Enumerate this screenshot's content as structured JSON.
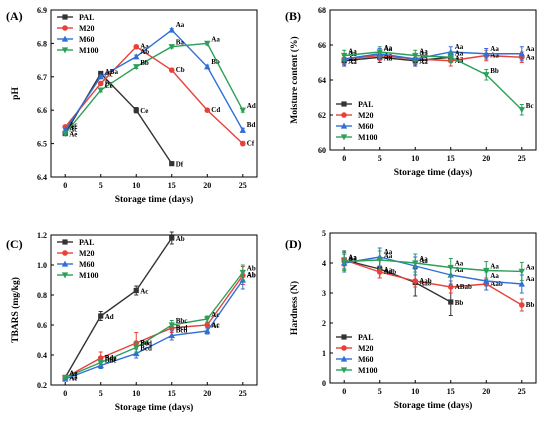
{
  "figure": {
    "series_styles": [
      {
        "name": "PAL",
        "color": "#333333",
        "marker": "square"
      },
      {
        "name": "M20",
        "color": "#e8413a",
        "marker": "circle"
      },
      {
        "name": "M60",
        "color": "#2f6fd6",
        "marker": "triangle-up"
      },
      {
        "name": "M100",
        "color": "#2ca05a",
        "marker": "triangle-down"
      }
    ]
  },
  "chart_data": [
    {
      "panel": "(A)",
      "type": "line",
      "xlabel": "Storage time (days)",
      "ylabel": "pH",
      "xlim": [
        -2,
        27
      ],
      "ylim": [
        6.4,
        6.9
      ],
      "xticks": [
        0,
        5,
        10,
        15,
        20,
        25
      ],
      "yticks": [
        6.4,
        6.5,
        6.6,
        6.7,
        6.8,
        6.9
      ],
      "ytick_decimals": 1,
      "legend": "top-left",
      "series": [
        {
          "name": "PAL",
          "x": [
            0,
            5,
            10,
            15
          ],
          "y": [
            6.53,
            6.71,
            6.6,
            6.44
          ],
          "err": [
            0.004,
            0.004,
            0.008,
            0.002
          ],
          "labels": [
            "Ae",
            "Ac",
            "Ce",
            "Df"
          ]
        },
        {
          "name": "M20",
          "x": [
            0,
            5,
            10,
            15,
            20,
            25
          ],
          "y": [
            6.55,
            6.68,
            6.79,
            6.72,
            6.6,
            6.5
          ],
          "err": [
            0.004,
            0.005,
            0.005,
            0.004,
            0.005,
            0.006
          ],
          "labels": [
            "Ac",
            "Bc",
            "Aa",
            "Cb",
            "Cd",
            "Cf"
          ]
        },
        {
          "name": "M60",
          "x": [
            0,
            5,
            10,
            15,
            20,
            25
          ],
          "y": [
            6.54,
            6.7,
            6.76,
            6.84,
            6.73,
            6.54
          ],
          "err": [
            0.004,
            0.005,
            0.005,
            0.004,
            0.005,
            0.006
          ],
          "labels": [
            "Ac",
            "ABa",
            "Ab",
            "Aa",
            "Bb",
            "Bd"
          ]
        },
        {
          "name": "M100",
          "x": [
            0,
            5,
            10,
            15,
            20,
            25
          ],
          "y": [
            6.53,
            6.66,
            6.73,
            6.79,
            6.8,
            6.6
          ],
          "err": [
            0.004,
            0.005,
            0.005,
            0.004,
            0.005,
            0.006
          ],
          "labels": [
            "Ac",
            "Ce",
            "Bb",
            "Ba",
            "Aa",
            "Ad"
          ]
        }
      ]
    },
    {
      "panel": "(B)",
      "type": "line",
      "xlabel": "Storage time (days)",
      "ylabel": "Moisture content (%)",
      "xlim": [
        -2,
        27
      ],
      "ylim": [
        60,
        68
      ],
      "xticks": [
        0,
        5,
        10,
        15,
        20,
        25
      ],
      "yticks": [
        60,
        62,
        64,
        66,
        68
      ],
      "ytick_decimals": 0,
      "legend": "bottom-left",
      "series": [
        {
          "name": "PAL",
          "x": [
            0,
            5,
            10,
            15
          ],
          "y": [
            65.1,
            65.3,
            65.1,
            65.3
          ],
          "err": [
            0.3,
            0.3,
            0.3,
            0.3
          ],
          "labels": [
            "Aa",
            "Aa",
            "Aa",
            "Aa"
          ]
        },
        {
          "name": "M20",
          "x": [
            0,
            5,
            10,
            15,
            20,
            25
          ],
          "y": [
            65.2,
            65.4,
            65.2,
            65.1,
            65.4,
            65.3
          ],
          "err": [
            0.3,
            0.3,
            0.3,
            0.3,
            0.3,
            0.3
          ],
          "labels": [
            "Aa",
            "Aa",
            "Aa",
            "Aa",
            "Aa",
            "Aa"
          ]
        },
        {
          "name": "M60",
          "x": [
            0,
            5,
            10,
            15,
            20,
            25
          ],
          "y": [
            65.2,
            65.5,
            65.2,
            65.6,
            65.5,
            65.5
          ],
          "err": [
            0.3,
            0.3,
            0.3,
            0.3,
            0.3,
            0.4
          ],
          "labels": [
            "Aa",
            "Aa",
            "Aa",
            "Aa",
            "Aa",
            "Aa"
          ]
        },
        {
          "name": "M100",
          "x": [
            0,
            5,
            10,
            15,
            20,
            25
          ],
          "y": [
            65.4,
            65.6,
            65.4,
            65.3,
            64.3,
            62.3
          ],
          "err": [
            0.3,
            0.3,
            0.3,
            0.3,
            0.3,
            0.3
          ],
          "labels": [
            "Aa",
            "Aa",
            "Aa",
            "Aa",
            "Bb",
            "Bc"
          ]
        }
      ]
    },
    {
      "panel": "(C)",
      "type": "line",
      "xlabel": "Storage time (days)",
      "ylabel": "TBARS (mg/kg)",
      "xlim": [
        -2,
        27
      ],
      "ylim": [
        0.2,
        1.2
      ],
      "xticks": [
        0,
        5,
        10,
        15,
        20,
        25
      ],
      "yticks": [
        0.2,
        0.4,
        0.6,
        0.8,
        1.0,
        1.2
      ],
      "ytick_decimals": 1,
      "legend": "top-left",
      "series": [
        {
          "name": "PAL",
          "x": [
            0,
            5,
            10,
            15
          ],
          "y": [
            0.25,
            0.66,
            0.83,
            1.18
          ],
          "err": [
            0.01,
            0.03,
            0.03,
            0.04
          ],
          "labels": [
            "Ae",
            "Ad",
            "Ac",
            "Ab"
          ]
        },
        {
          "name": "M20",
          "x": [
            0,
            5,
            10,
            15,
            20,
            25
          ],
          "y": [
            0.25,
            0.38,
            0.48,
            0.58,
            0.6,
            0.93
          ],
          "err": [
            0.01,
            0.04,
            0.07,
            0.03,
            0.02,
            0.06
          ],
          "labels": [
            "Ae",
            "Bde",
            "Bd",
            "Bcd",
            "Ac",
            "Ab"
          ]
        },
        {
          "name": "M60",
          "x": [
            0,
            5,
            10,
            15,
            20,
            25
          ],
          "y": [
            0.24,
            0.33,
            0.41,
            0.53,
            0.56,
            0.9
          ],
          "err": [
            0.01,
            0.02,
            0.03,
            0.03,
            0.02,
            0.06
          ],
          "labels": [
            "Ae",
            "Bde",
            "Bcd",
            "Bcd",
            "Ac",
            "Ab"
          ]
        },
        {
          "name": "M100",
          "x": [
            0,
            5,
            10,
            15,
            20,
            25
          ],
          "y": [
            0.25,
            0.35,
            0.45,
            0.6,
            0.64,
            0.95
          ],
          "err": [
            0.01,
            0.02,
            0.03,
            0.03,
            0.02,
            0.05
          ],
          "labels": [
            "Ae",
            "Bde",
            "Bed",
            "Bbc",
            "Ac",
            "Ab"
          ]
        }
      ]
    },
    {
      "panel": "(D)",
      "type": "line",
      "xlabel": "Storage time (days)",
      "ylabel": "Hardness (N)",
      "xlim": [
        -2,
        27
      ],
      "ylim": [
        0,
        5
      ],
      "xticks": [
        0,
        5,
        10,
        15,
        20,
        25
      ],
      "yticks": [
        0,
        1,
        2,
        3,
        4,
        5
      ],
      "ytick_decimals": 0,
      "legend": "bottom-left",
      "series": [
        {
          "name": "PAL",
          "x": [
            0,
            5,
            10,
            15
          ],
          "y": [
            4.1,
            3.8,
            3.35,
            2.7
          ],
          "err": [
            0.3,
            0.3,
            0.45,
            0.45
          ],
          "labels": [
            "Aa",
            "Aa",
            "Aab",
            "Bb"
          ]
        },
        {
          "name": "M20",
          "x": [
            0,
            5,
            10,
            15,
            20,
            25
          ],
          "y": [
            4.1,
            3.7,
            3.4,
            3.2,
            3.3,
            2.6
          ],
          "err": [
            0.2,
            0.2,
            0.2,
            0.2,
            0.2,
            0.2
          ],
          "labels": [
            "Aa",
            "Aab",
            "Aab",
            "ABab",
            "Aab",
            "Bb"
          ]
        },
        {
          "name": "M60",
          "x": [
            0,
            5,
            10,
            15,
            20,
            25
          ],
          "y": [
            4.0,
            4.2,
            3.9,
            3.6,
            3.4,
            3.3
          ],
          "err": [
            0.3,
            0.3,
            0.3,
            0.3,
            0.3,
            0.3
          ],
          "labels": [
            "Aa",
            "Aa",
            "Aa",
            "Aa",
            "Aa",
            "Aa"
          ]
        },
        {
          "name": "M100",
          "x": [
            0,
            5,
            10,
            15,
            20,
            25
          ],
          "y": [
            4.05,
            4.1,
            4.0,
            3.85,
            3.75,
            3.72
          ],
          "err": [
            0.3,
            0.3,
            0.3,
            0.3,
            0.3,
            0.3
          ],
          "labels": [
            "Aa",
            "Aa",
            "Aa",
            "Aa",
            "Aa",
            "Aa"
          ]
        }
      ]
    }
  ]
}
